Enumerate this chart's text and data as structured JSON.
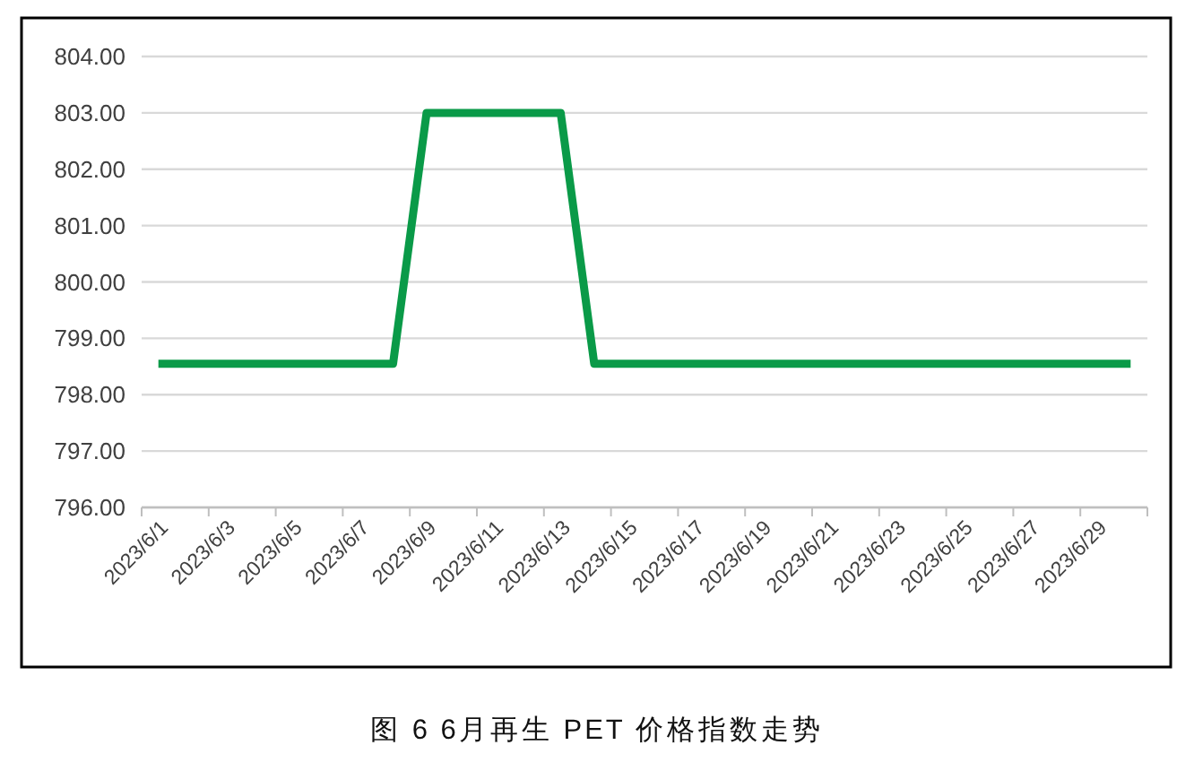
{
  "chart_data": {
    "type": "line",
    "title": "图 6 6月再生 PET 价格指数走势",
    "categories": [
      "2023/6/1",
      null,
      "2023/6/3",
      null,
      "2023/6/5",
      null,
      "2023/6/7",
      null,
      "2023/6/9",
      null,
      "2023/6/11",
      null,
      "2023/6/13",
      null,
      "2023/6/15",
      null,
      "2023/6/17",
      null,
      "2023/6/19",
      null,
      "2023/6/21",
      null,
      "2023/6/23",
      null,
      "2023/6/25",
      null,
      "2023/6/27",
      null,
      "2023/6/29",
      null
    ],
    "series": [
      {
        "color": "#0a9a48",
        "values": [
          798.55,
          798.55,
          798.55,
          798.55,
          798.55,
          798.55,
          798.55,
          798.55,
          803,
          803,
          803,
          803,
          803,
          798.55,
          798.55,
          798.55,
          798.55,
          798.55,
          798.55,
          798.55,
          798.55,
          798.55,
          798.55,
          798.55,
          798.55,
          798.55,
          798.55,
          798.55,
          798.55,
          798.55
        ]
      }
    ],
    "ylim": [
      796,
      804
    ],
    "yticks": [
      {
        "value": 796,
        "label": "796.00"
      },
      {
        "value": 797,
        "label": "797.00"
      },
      {
        "value": 798,
        "label": "798.00"
      },
      {
        "value": 799,
        "label": "799.00"
      },
      {
        "value": 800,
        "label": "800.00"
      },
      {
        "value": 801,
        "label": "801.00"
      },
      {
        "value": 802,
        "label": "802.00"
      },
      {
        "value": 803,
        "label": "803.00"
      },
      {
        "value": 804,
        "label": "804.00"
      }
    ],
    "grid": "y"
  }
}
